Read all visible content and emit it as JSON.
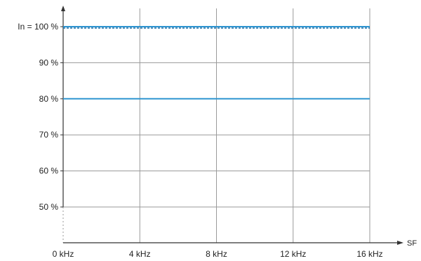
{
  "chart_data": {
    "type": "line",
    "title": "",
    "xlabel": "SF",
    "ylabel": "",
    "x": [
      0,
      4,
      8,
      12,
      16
    ],
    "x_tick_labels": [
      "0 kHz",
      "4 kHz",
      "8 kHz",
      "12 kHz",
      "16 kHz"
    ],
    "xlim": [
      0,
      16
    ],
    "y_ticks": [
      50,
      60,
      70,
      80,
      90,
      100
    ],
    "y_tick_labels": [
      "50 %",
      "60 %",
      "70 %",
      "80 %",
      "90 %",
      "In = 100 %"
    ],
    "ylim": [
      40,
      100
    ],
    "grid": true,
    "legend": "none",
    "series": [
      {
        "x": [
          0,
          16
        ],
        "values": [
          100,
          100
        ],
        "color": "#2f95d0",
        "style": "solid"
      },
      {
        "x": [
          0,
          16
        ],
        "values": [
          100,
          100
        ],
        "color": "#2f95d0",
        "style": "dashed"
      },
      {
        "x": [
          0,
          16
        ],
        "values": [
          80,
          80
        ],
        "color": "#2f95d0",
        "style": "solid"
      }
    ]
  }
}
